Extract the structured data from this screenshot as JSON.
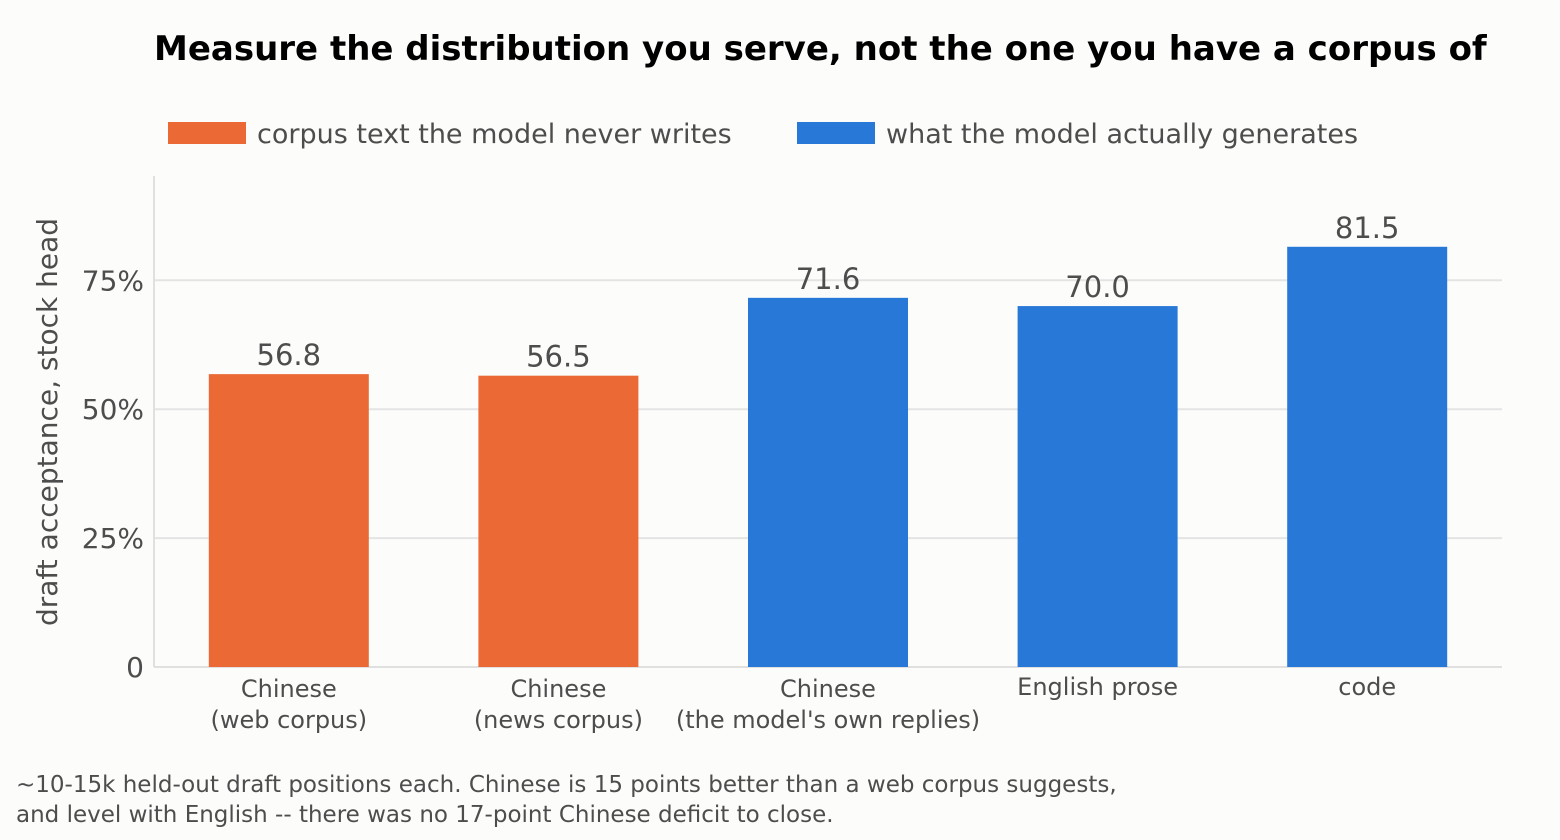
{
  "chart_data": {
    "type": "bar",
    "title": "Measure the distribution you serve, not the one you have a corpus of",
    "ylabel": "draft acceptance, stock head",
    "xlabel": "",
    "ylim": [
      0,
      95
    ],
    "yticks": [
      {
        "value": 0,
        "label": "0"
      },
      {
        "value": 25,
        "label": "25%"
      },
      {
        "value": 50,
        "label": "50%"
      },
      {
        "value": 75,
        "label": "75%"
      }
    ],
    "grid": true,
    "legend_position": "top-left",
    "legend": [
      {
        "label": "corpus text the model never writes",
        "color": "#eb6935"
      },
      {
        "label": "what the model actually generates",
        "color": "#2878d7"
      }
    ],
    "categories": [
      [
        "Chinese",
        "(web corpus)"
      ],
      [
        "Chinese",
        "(news corpus)"
      ],
      [
        "Chinese",
        "(the model's own replies)"
      ],
      [
        "English prose"
      ],
      [
        "code"
      ]
    ],
    "values": [
      56.8,
      56.5,
      71.6,
      70.0,
      81.5
    ],
    "value_labels": [
      "56.8",
      "56.5",
      "71.6",
      "70.0",
      "81.5"
    ],
    "bar_group": [
      0,
      0,
      1,
      1,
      1
    ]
  },
  "footnote": {
    "line1": "~10-15k held-out draft positions each. Chinese is 15 points better than a web corpus suggests,",
    "line2": "and level with English -- there was no 17-point Chinese deficit to close."
  }
}
